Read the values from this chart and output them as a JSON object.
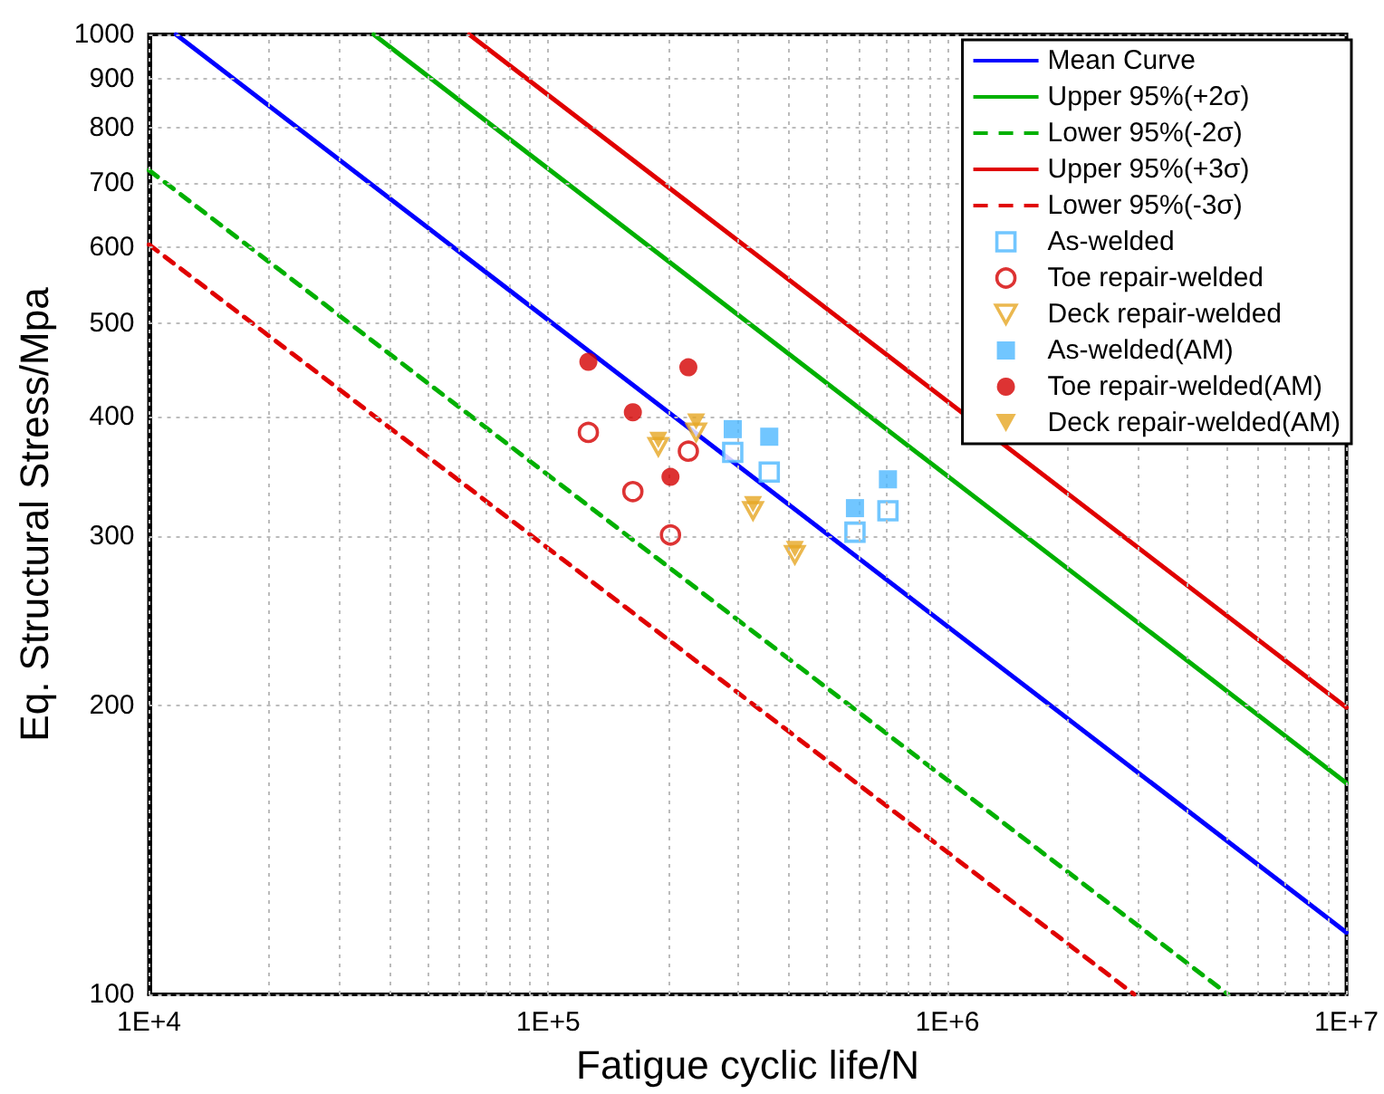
{
  "chart_data": {
    "type": "scatter",
    "xlabel": "Fatigue cyclic life/N",
    "ylabel": "Eq. Structural Stress/Mpa",
    "log": "xy",
    "grid": true,
    "legend": "top right",
    "xlim": [
      10000,
      10000000
    ],
    "ylim": [
      100,
      1000
    ],
    "xticks": [
      {
        "value": 10000,
        "label": "1E+4"
      },
      {
        "value": 20000,
        "label": null
      },
      {
        "value": 30000,
        "label": null
      },
      {
        "value": 40000,
        "label": null
      },
      {
        "value": 50000,
        "label": null
      },
      {
        "value": 60000,
        "label": null
      },
      {
        "value": 70000,
        "label": null
      },
      {
        "value": 80000,
        "label": null
      },
      {
        "value": 90000,
        "label": null
      },
      {
        "value": 100000,
        "label": "1E+5"
      },
      {
        "value": 200000,
        "label": null
      },
      {
        "value": 300000,
        "label": null
      },
      {
        "value": 400000,
        "label": null
      },
      {
        "value": 500000,
        "label": null
      },
      {
        "value": 600000,
        "label": null
      },
      {
        "value": 700000,
        "label": null
      },
      {
        "value": 800000,
        "label": null
      },
      {
        "value": 900000,
        "label": null
      },
      {
        "value": 1000000,
        "label": "1E+6"
      },
      {
        "value": 2000000,
        "label": null
      },
      {
        "value": 3000000,
        "label": null
      },
      {
        "value": 4000000,
        "label": null
      },
      {
        "value": 5000000,
        "label": null
      },
      {
        "value": 6000000,
        "label": null
      },
      {
        "value": 7000000,
        "label": null
      },
      {
        "value": 8000000,
        "label": null
      },
      {
        "value": 9000000,
        "label": null
      },
      {
        "value": 10000000,
        "label": "1E+7"
      }
    ],
    "yticks": [
      100,
      200,
      300,
      400,
      500,
      600,
      700,
      800,
      900,
      1000
    ],
    "series": [
      {
        "name": "Mean Curve",
        "type": "line",
        "color": "#0000ff",
        "line_style": "solid",
        "marker": "none",
        "x": [
          11680,
          10000000
        ],
        "values": [
          1000,
          116
        ]
      },
      {
        "name": "Upper 95%(+2σ)",
        "type": "line",
        "color": "#00b000",
        "line_style": "solid",
        "marker": "none",
        "x": [
          36540,
          10000000
        ],
        "values": [
          1000,
          166
        ]
      },
      {
        "name": "Lower 95%(-2σ)",
        "type": "line",
        "color": "#00b000",
        "line_style": "dashed",
        "marker": "none",
        "x": [
          10000,
          5050000
        ],
        "values": [
          722,
          100
        ]
      },
      {
        "name": "Upper 95%(+3σ)",
        "type": "line",
        "color": "#e00000",
        "line_style": "solid",
        "marker": "none",
        "x": [
          63400,
          10000000
        ],
        "values": [
          1000,
          199
        ]
      },
      {
        "name": "Lower 95%(-3σ)",
        "type": "line",
        "color": "#e00000",
        "line_style": "dashed",
        "marker": "none",
        "x": [
          10000,
          2940000
        ],
        "values": [
          604,
          100
        ]
      },
      {
        "name": "As-welded",
        "color": "#4db8ff",
        "marker": "square",
        "x": [
          290000,
          358000,
          587000,
          710000
        ],
        "values": [
          367,
          350,
          303,
          319
        ]
      },
      {
        "name": "Toe repair-welded",
        "color": "#d40000",
        "marker": "circle",
        "x": [
          126100,
          163000,
          202500,
          224500
        ],
        "values": [
          385,
          334,
          301,
          368
        ]
      },
      {
        "name": "Deck repair-welded",
        "color": "#e6a623",
        "marker": "triangle",
        "x": [
          188800,
          234800,
          326000,
          415000
        ],
        "values": [
          372,
          385,
          319,
          287
        ]
      },
      {
        "name": "As-welded(AM)",
        "color": "#4db8ff",
        "marker": "square",
        "x": [
          290000,
          358000,
          587000,
          710000
        ],
        "values": [
          388,
          381,
          321,
          344
        ]
      },
      {
        "name": "Toe repair-welded(AM)",
        "color": "#d40000",
        "marker": "circle",
        "x": [
          126100,
          163000,
          202500,
          224500
        ],
        "values": [
          456,
          404,
          346,
          450
        ]
      },
      {
        "name": "Deck repair-welded(AM)",
        "color": "#e6a623",
        "marker": "triangle",
        "x": [
          188800,
          234800,
          326000,
          415000
        ],
        "values": [
          378,
          395,
          324,
          291
        ]
      }
    ]
  }
}
